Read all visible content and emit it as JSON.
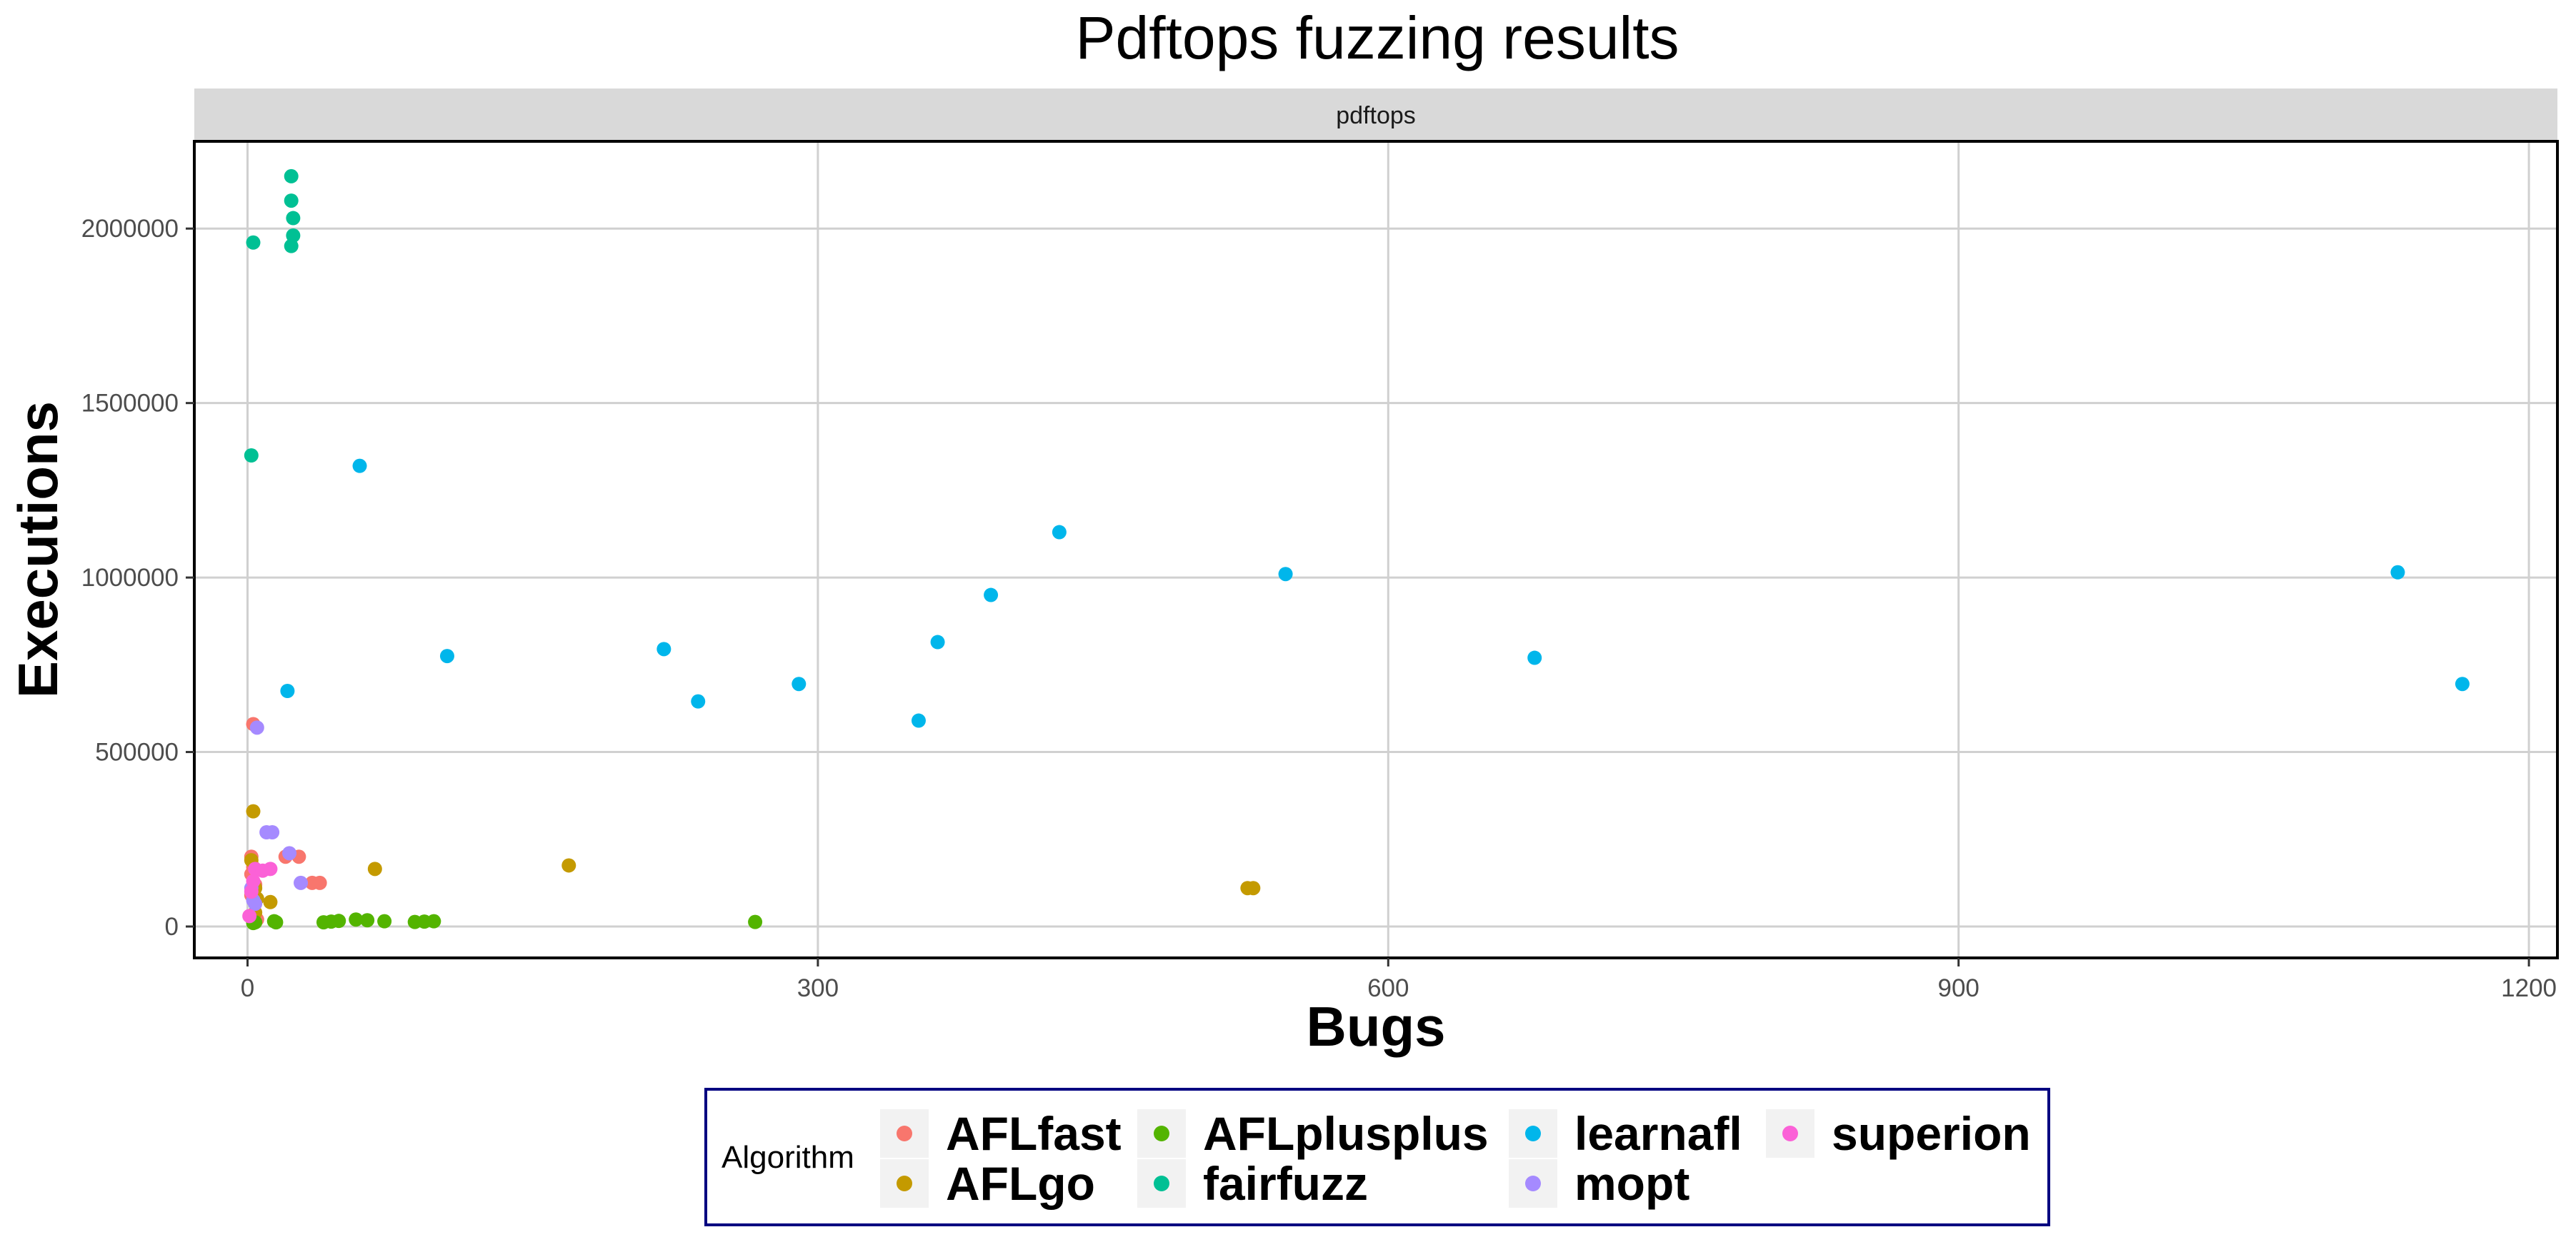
{
  "chart_data": {
    "type": "scatter",
    "title": "Pdftops fuzzing results",
    "facet_label": "pdftops",
    "xlabel": "Bugs",
    "ylabel": "Executions",
    "xlim": [
      -28,
      1215
    ],
    "ylim": [
      -90000,
      2250000
    ],
    "x_ticks": [
      0,
      300,
      600,
      900,
      1200
    ],
    "y_ticks": [
      0,
      500000,
      1000000,
      1500000,
      2000000
    ],
    "grid": true,
    "legend": {
      "title": "Algorithm",
      "position": "bottom"
    },
    "series": [
      {
        "name": "AFLfast",
        "color": "#F8766D",
        "points": [
          [
            3,
            580000
          ],
          [
            2,
            200000
          ],
          [
            3,
            170000
          ],
          [
            2,
            150000
          ],
          [
            4,
            120000
          ],
          [
            2,
            90000
          ],
          [
            20,
            200000
          ],
          [
            27,
            200000
          ],
          [
            34,
            125000
          ],
          [
            38,
            125000
          ],
          [
            5,
            20000
          ],
          [
            3,
            15000
          ]
        ]
      },
      {
        "name": "AFLgo",
        "color": "#C49A00",
        "points": [
          [
            3,
            330000
          ],
          [
            2,
            190000
          ],
          [
            4,
            110000
          ],
          [
            5,
            80000
          ],
          [
            12,
            70000
          ],
          [
            67,
            165000
          ],
          [
            169,
            175000
          ],
          [
            526,
            110000
          ],
          [
            529,
            110000
          ],
          [
            4,
            40000
          ]
        ]
      },
      {
        "name": "AFLplusplus",
        "color": "#53B400",
        "points": [
          [
            3,
            10000
          ],
          [
            4,
            12000
          ],
          [
            14,
            15000
          ],
          [
            40,
            12000
          ],
          [
            44,
            14000
          ],
          [
            48,
            16000
          ],
          [
            57,
            20000
          ],
          [
            63,
            18000
          ],
          [
            72,
            15000
          ],
          [
            88,
            13000
          ],
          [
            93,
            14000
          ],
          [
            98,
            15000
          ],
          [
            267,
            13000
          ],
          [
            15,
            12000
          ]
        ]
      },
      {
        "name": "fairfuzz",
        "color": "#00C094",
        "points": [
          [
            3,
            1960000
          ],
          [
            2,
            1350000
          ],
          [
            23,
            2150000
          ],
          [
            23,
            2080000
          ],
          [
            24,
            2030000
          ],
          [
            24,
            1980000
          ],
          [
            23,
            1950000
          ]
        ]
      },
      {
        "name": "learnafl",
        "color": "#00B6EB",
        "points": [
          [
            59,
            1320000
          ],
          [
            21,
            675000
          ],
          [
            105,
            775000
          ],
          [
            219,
            795000
          ],
          [
            237,
            645000
          ],
          [
            290,
            695000
          ],
          [
            353,
            590000
          ],
          [
            363,
            815000
          ],
          [
            391,
            950000
          ],
          [
            427,
            1130000
          ],
          [
            546,
            1010000
          ],
          [
            677,
            770000
          ],
          [
            1131,
            1015000
          ],
          [
            1165,
            695000
          ]
        ]
      },
      {
        "name": "mopt",
        "color": "#A58AFF",
        "points": [
          [
            5,
            570000
          ],
          [
            10,
            270000
          ],
          [
            13,
            270000
          ],
          [
            22,
            210000
          ],
          [
            28,
            125000
          ],
          [
            2,
            110000
          ],
          [
            3,
            75000
          ],
          [
            4,
            65000
          ]
        ]
      },
      {
        "name": "superion",
        "color": "#FB61D7",
        "points": [
          [
            4,
            165000
          ],
          [
            8,
            160000
          ],
          [
            12,
            165000
          ],
          [
            3,
            130000
          ],
          [
            2,
            100000
          ],
          [
            1,
            30000
          ]
        ]
      }
    ]
  }
}
